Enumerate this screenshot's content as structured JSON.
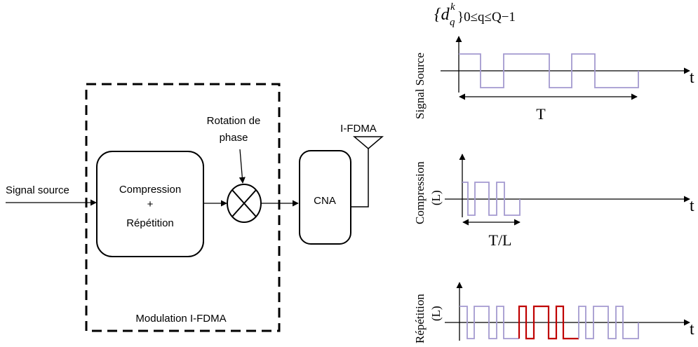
{
  "block_diagram": {
    "input_label": "Signal source",
    "compression_label": "Compression",
    "plus_label": "+",
    "repetition_label": "Répétition",
    "phase_rotation_line1": "Rotation de",
    "phase_rotation_line2": "phase",
    "dac_label": "CNA",
    "antenna_label": "I-FDMA",
    "modulation_box_label": "Modulation I-FDMA"
  },
  "waveforms": {
    "source_symbol_set": {
      "base": "{d",
      "superscript": "k",
      "subscript": "q",
      "range": "}0≤q≤Q−1"
    },
    "time_axis_label": "t",
    "source": {
      "ylabel": "Signal Source",
      "span_label": "T"
    },
    "compression": {
      "ylabel_line1": "Compression",
      "ylabel_line2": "(L)",
      "span_label": "T/L"
    },
    "repetition": {
      "ylabel_line1": "Répétition",
      "ylabel_line2": "(L)"
    }
  },
  "colors": {
    "waveform_primary": "#a49ad0",
    "waveform_highlight": "#c00000",
    "lines": "#000000"
  }
}
